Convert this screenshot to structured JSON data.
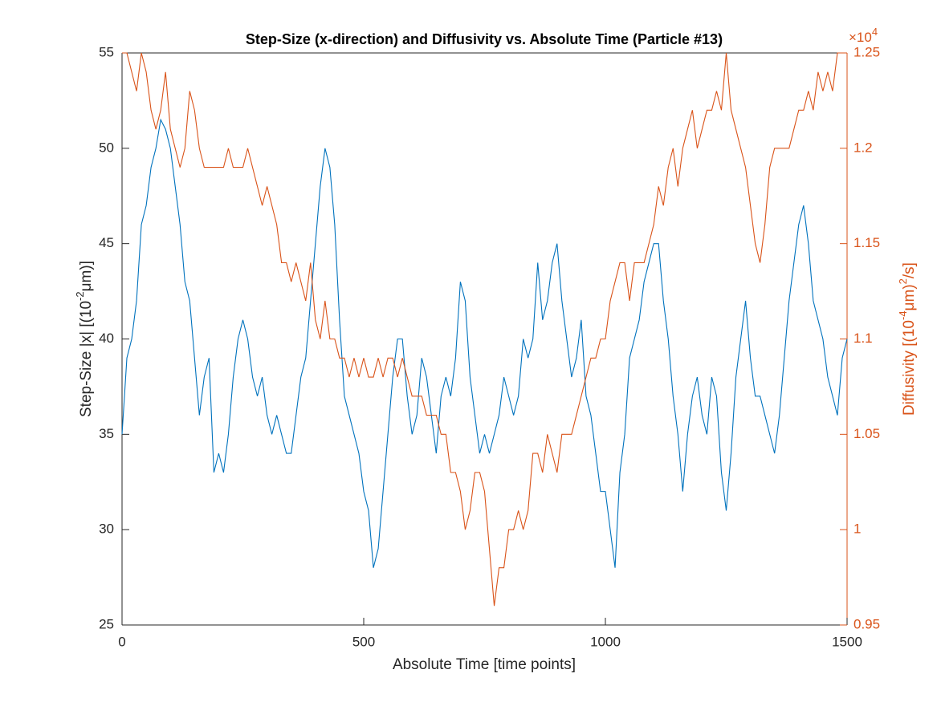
{
  "chart_data": {
    "type": "line",
    "title": "Step-Size (x-direction) and Diffusivity vs. Absolute Time (Particle #13)",
    "xlabel": "Absolute Time [time points]",
    "ylabel": [
      "Step-Size |x| [(10",
      "-2",
      "μm)]"
    ],
    "y2label": [
      "Diffusivity [(10",
      "-4",
      "μm)",
      "2",
      "/s]"
    ],
    "y2_multiplier": [
      "×10",
      "4"
    ],
    "x": [
      0,
      10,
      20,
      30,
      40,
      50,
      60,
      70,
      80,
      90,
      100,
      110,
      120,
      130,
      140,
      150,
      160,
      170,
      180,
      190,
      200,
      210,
      220,
      230,
      240,
      250,
      260,
      270,
      280,
      290,
      300,
      310,
      320,
      330,
      340,
      350,
      360,
      370,
      380,
      390,
      400,
      410,
      420,
      430,
      440,
      450,
      460,
      470,
      480,
      490,
      500,
      510,
      520,
      530,
      540,
      550,
      560,
      570,
      580,
      590,
      600,
      610,
      620,
      630,
      640,
      650,
      660,
      670,
      680,
      690,
      700,
      710,
      720,
      730,
      740,
      750,
      760,
      770,
      780,
      790,
      800,
      810,
      820,
      830,
      840,
      850,
      860,
      870,
      880,
      890,
      900,
      910,
      920,
      930,
      940,
      950,
      960,
      970,
      980,
      990,
      1000,
      1010,
      1020,
      1030,
      1040,
      1050,
      1060,
      1070,
      1080,
      1090,
      1100,
      1110,
      1120,
      1130,
      1140,
      1150,
      1160,
      1170,
      1180,
      1190,
      1200,
      1210,
      1220,
      1230,
      1240,
      1250,
      1260,
      1270,
      1280,
      1290,
      1300,
      1310,
      1320,
      1330,
      1340,
      1350,
      1360,
      1370,
      1380,
      1390,
      1400,
      1410,
      1420,
      1430,
      1440,
      1450,
      1460,
      1470,
      1480,
      1490,
      1500
    ],
    "series": [
      {
        "name": "Step-Size",
        "color": "#0072BD",
        "axis": "y",
        "values": [
          35,
          39,
          40,
          42,
          46,
          47,
          49,
          50,
          51.5,
          51,
          50,
          48,
          46,
          43,
          42,
          39,
          36,
          38,
          39,
          33,
          34,
          33,
          35,
          38,
          40,
          41,
          40,
          38,
          37,
          38,
          36,
          35,
          36,
          35,
          34,
          34,
          36,
          38,
          39,
          42,
          45,
          48,
          50,
          49,
          46,
          41,
          37,
          36,
          35,
          34,
          32,
          31,
          28,
          29,
          32,
          35,
          38,
          40,
          40,
          37,
          35,
          36,
          39,
          38,
          36,
          34,
          37,
          38,
          37,
          39,
          43,
          42,
          38,
          36,
          34,
          35,
          34,
          35,
          36,
          38,
          37,
          36,
          37,
          40,
          39,
          40,
          44,
          41,
          42,
          44,
          45,
          42,
          40,
          38,
          39,
          41,
          37,
          36,
          34,
          32,
          32,
          30,
          28,
          33,
          35,
          39,
          40,
          41,
          43,
          44,
          45,
          45,
          42,
          40,
          37,
          35,
          32,
          35,
          37,
          38,
          36,
          35,
          38,
          37,
          33,
          31,
          34,
          38,
          40,
          42,
          39,
          37,
          37,
          36,
          35,
          34,
          36,
          39,
          42,
          44,
          46,
          47,
          45,
          42,
          41,
          40,
          38,
          37,
          36,
          39,
          40
        ]
      },
      {
        "name": "Diffusivity",
        "color": "#D95319",
        "axis": "y2",
        "values": [
          1.25,
          1.25,
          1.24,
          1.23,
          1.25,
          1.24,
          1.22,
          1.21,
          1.22,
          1.24,
          1.21,
          1.2,
          1.19,
          1.2,
          1.23,
          1.22,
          1.2,
          1.19,
          1.19,
          1.19,
          1.19,
          1.19,
          1.2,
          1.19,
          1.19,
          1.19,
          1.2,
          1.19,
          1.18,
          1.17,
          1.18,
          1.17,
          1.16,
          1.14,
          1.14,
          1.13,
          1.14,
          1.13,
          1.12,
          1.14,
          1.11,
          1.1,
          1.12,
          1.1,
          1.1,
          1.09,
          1.09,
          1.08,
          1.09,
          1.08,
          1.09,
          1.08,
          1.08,
          1.09,
          1.08,
          1.09,
          1.09,
          1.08,
          1.09,
          1.08,
          1.07,
          1.07,
          1.07,
          1.06,
          1.06,
          1.06,
          1.05,
          1.05,
          1.03,
          1.03,
          1.02,
          1,
          1.01,
          1.03,
          1.03,
          1.02,
          0.99,
          0.96,
          0.98,
          0.98,
          1,
          1,
          1.01,
          1,
          1.01,
          1.04,
          1.04,
          1.03,
          1.05,
          1.04,
          1.03,
          1.05,
          1.05,
          1.05,
          1.06,
          1.07,
          1.08,
          1.09,
          1.09,
          1.1,
          1.1,
          1.12,
          1.13,
          1.14,
          1.14,
          1.12,
          1.14,
          1.14,
          1.14,
          1.15,
          1.16,
          1.18,
          1.17,
          1.19,
          1.2,
          1.18,
          1.2,
          1.21,
          1.22,
          1.2,
          1.21,
          1.22,
          1.22,
          1.23,
          1.22,
          1.25,
          1.22,
          1.21,
          1.2,
          1.19,
          1.17,
          1.15,
          1.14,
          1.16,
          1.19,
          1.2,
          1.2,
          1.2,
          1.2,
          1.21,
          1.22,
          1.22,
          1.23,
          1.22,
          1.24,
          1.23,
          1.24,
          1.23,
          1.25,
          1.25,
          1.25
        ]
      }
    ],
    "xlim": [
      0,
      1500
    ],
    "xticks": [
      0,
      500,
      1000,
      1500
    ],
    "ylim": [
      25,
      55
    ],
    "yticks": [
      25,
      30,
      35,
      40,
      45,
      50,
      55
    ],
    "y2lim": [
      0.95,
      1.25
    ],
    "y2ticks": [
      0.95,
      1,
      1.05,
      1.1,
      1.15,
      1.2,
      1.25
    ],
    "y2color": "#D95319",
    "grid": false
  }
}
